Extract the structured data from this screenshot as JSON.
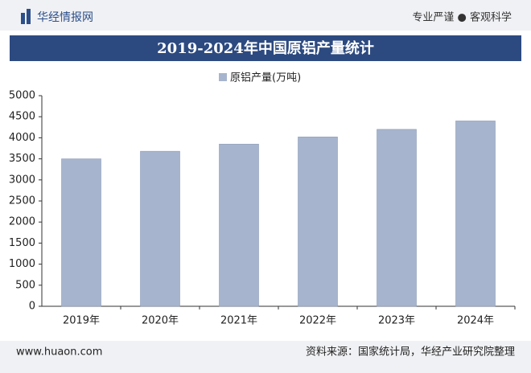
{
  "header": {
    "brand": "华经情报网",
    "slogan": "专业严谨 ● 客观科学"
  },
  "footer": {
    "website": "www.huaon.com",
    "source": "资料来源：国家统计局，华经产业研究院整理"
  },
  "chart_data": {
    "type": "bar",
    "title": "2019-2024年中国原铝产量统计",
    "categories": [
      "2019年",
      "2020年",
      "2021年",
      "2022年",
      "2023年",
      "2024年"
    ],
    "series": [
      {
        "name": "原铝产量(万吨)",
        "color": "#a7b4cd",
        "values": [
          3500,
          3680,
          3850,
          4020,
          4200,
          4400
        ]
      }
    ],
    "ylim": [
      0,
      5000
    ],
    "yticks": [
      0,
      500,
      1000,
      1500,
      2000,
      2500,
      3000,
      3500,
      4000,
      4500,
      5000
    ],
    "grid": false,
    "legend": "top"
  }
}
